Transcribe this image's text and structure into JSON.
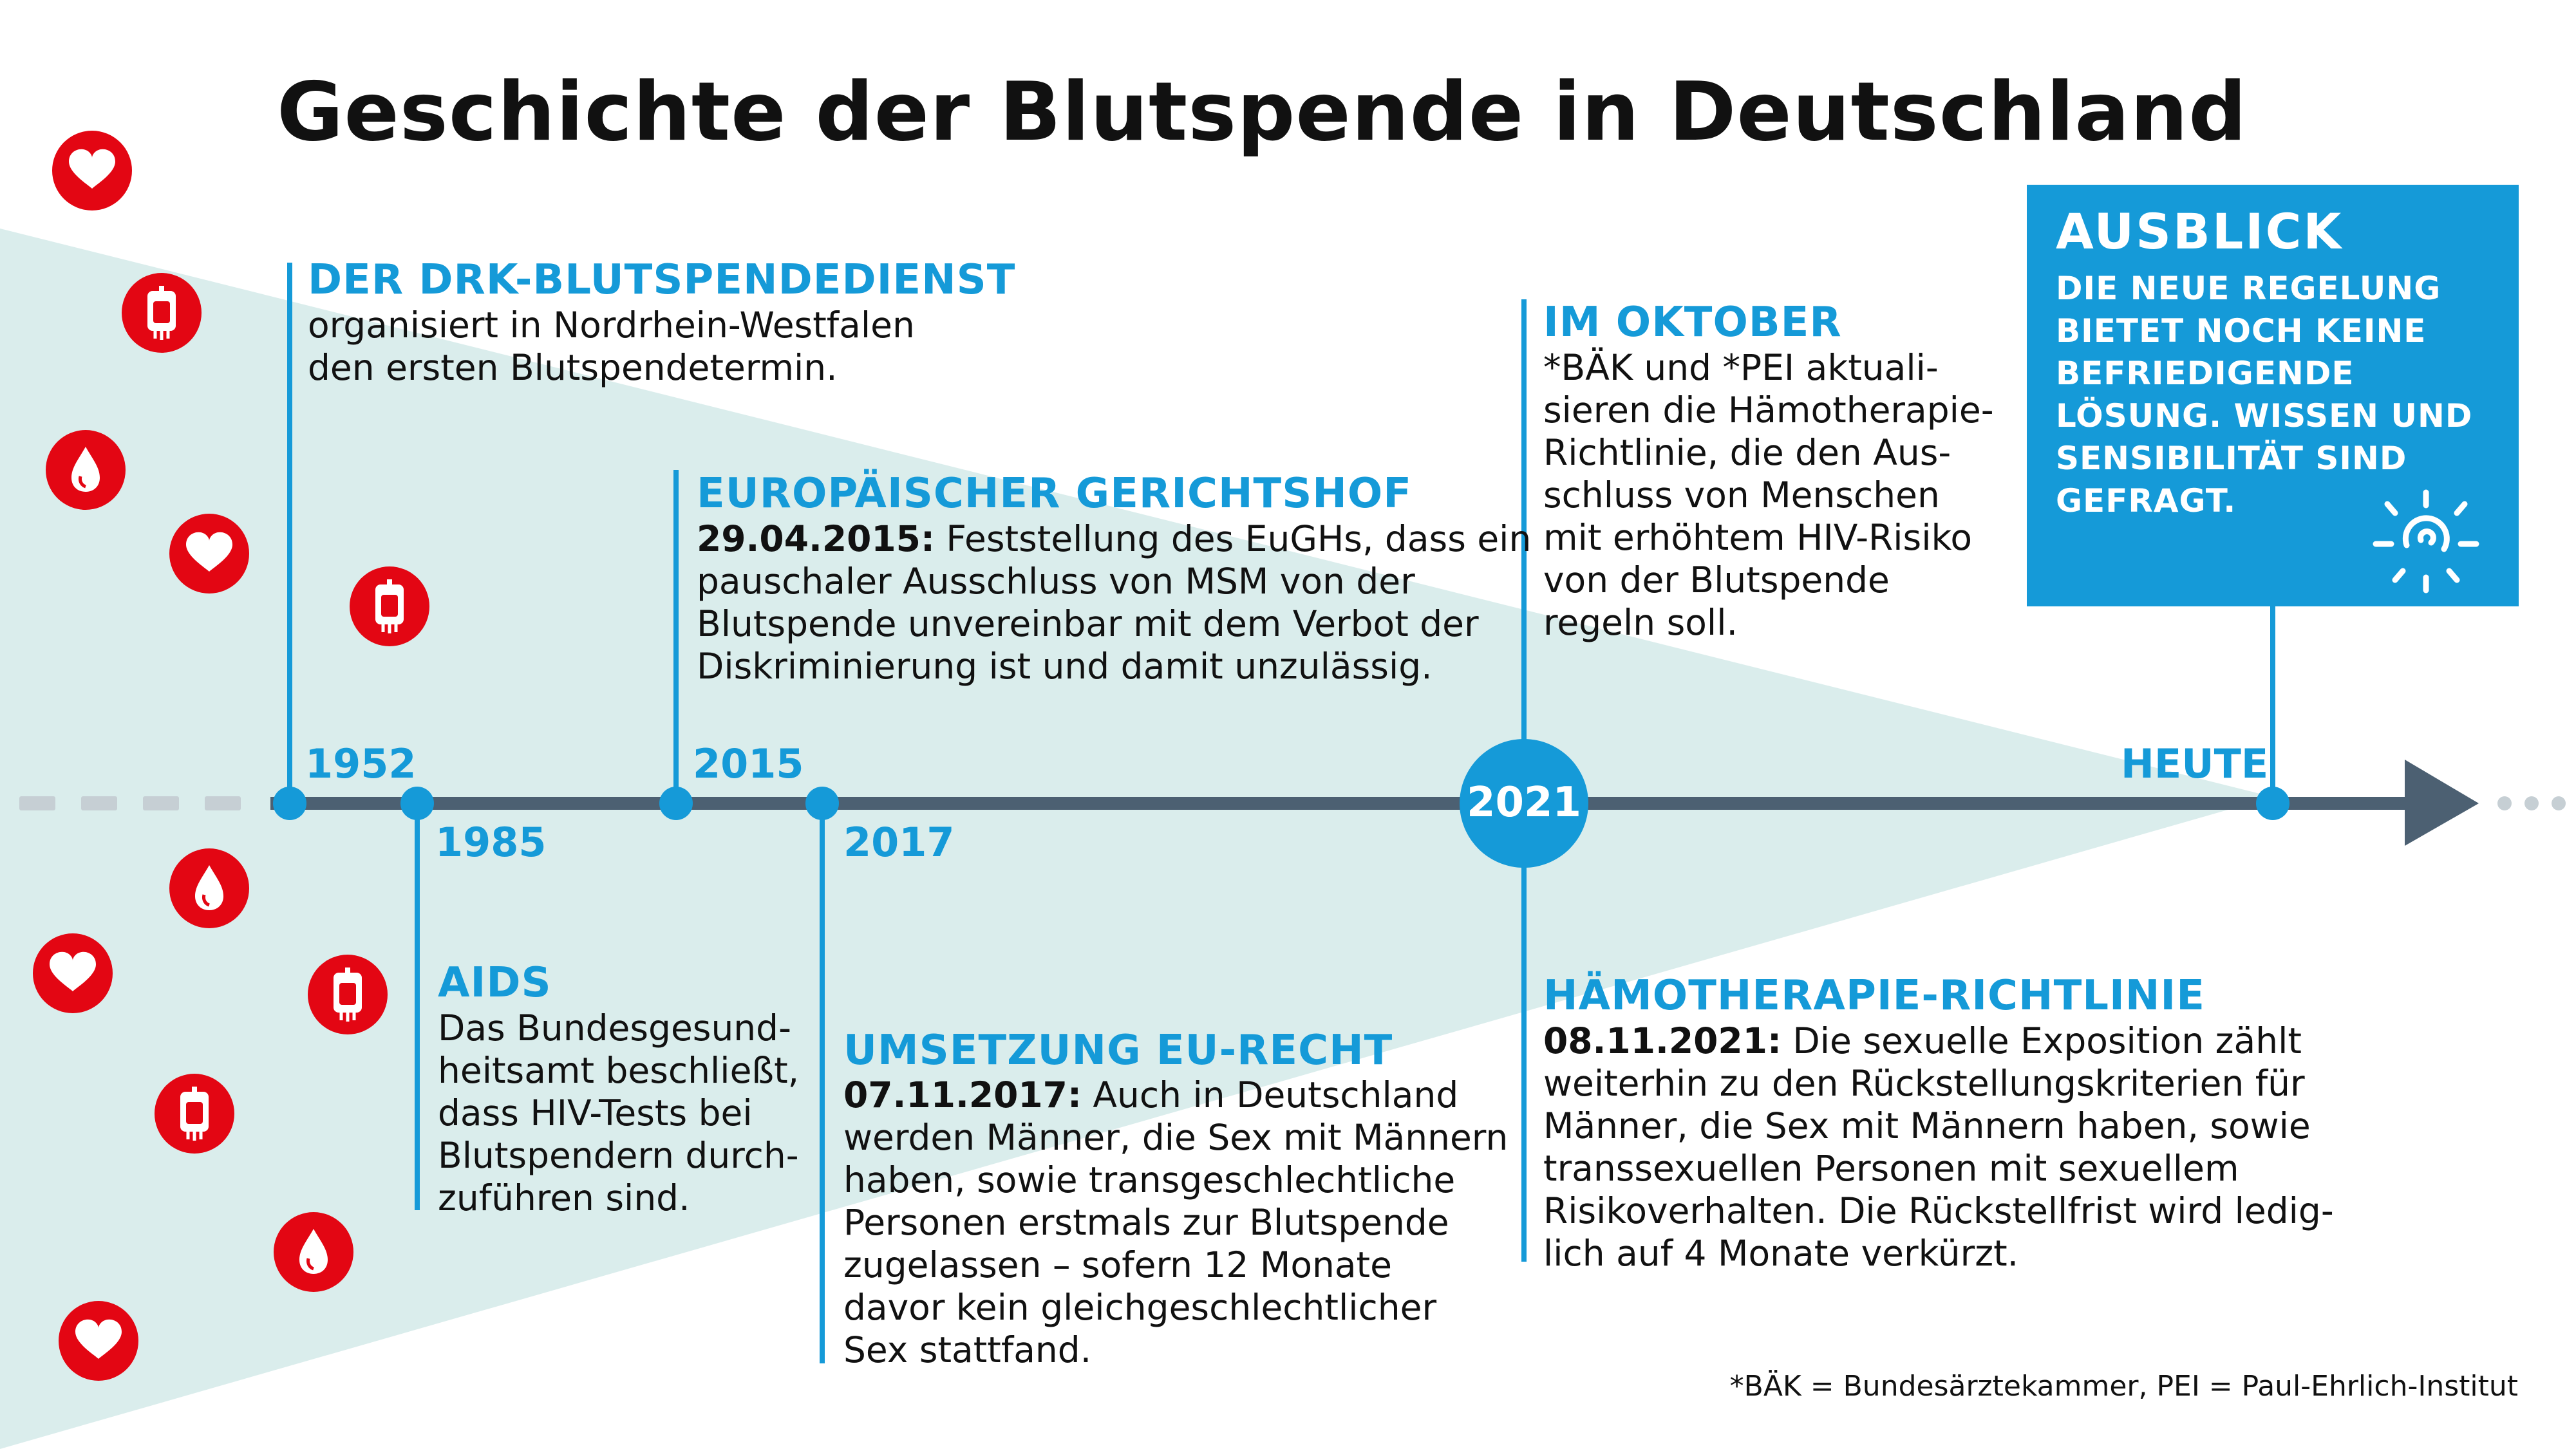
{
  "title": "Geschichte der Blutspende in Deutschland",
  "colors": {
    "accent": "#159ad8",
    "timeline": "#4c6072",
    "wedge": "#daedec",
    "icon_red": "#e30613",
    "dashes": "#c6cfd4"
  },
  "events": {
    "e1952": {
      "year": "1952",
      "heading": "Der DRK-Blutspendedienst",
      "text": "organisiert in Nordrhein-Westfalen\nden ersten Blutspendetermin."
    },
    "e1985": {
      "year": "1985",
      "heading": "AIDS",
      "text": "Das Bundesgesund-\nheitsamt beschließt,\ndass HIV-Tests bei\nBlutspendern durch-\nzuführen sind."
    },
    "e2015": {
      "year": "2015",
      "heading": "Europäischer Gerichtshof",
      "date": "29.04.2015:",
      "text": " Feststellung des EuGHs, dass ein\npauschaler Ausschluss von MSM von der\nBlutspende unvereinbar mit dem Verbot der\nDiskriminierung ist und damit unzulässig."
    },
    "e2017": {
      "year": "2017",
      "heading": "Umsetzung EU-Recht",
      "date": "07.11.2017:",
      "text": " Auch in Deutschland\nwerden Männer, die Sex mit Männern\nhaben, sowie transgeschlechtliche\nPersonen erstmals zur Blutspende\nzugelassen – sofern 12 Monate\ndavor kein gleichgeschlechtlicher\nSex stattfand."
    },
    "e2021": {
      "year": "2021",
      "top_heading": "Im Oktober",
      "top_text": "*BÄK und *PEI aktuali-\nsieren die Hämotherapie-\nRichtlinie, die den Aus-\nschluss von Menschen\nmit erhöhtem HIV-Risiko\nvon der Blutspende\nregeln soll.",
      "bottom_heading": "Hämotherapie-Richtlinie",
      "bottom_date": "08.11.2021:",
      "bottom_text": " Die sexuelle Exposition zählt\nweiterhin zu den Rückstellungskriterien für\nMänner, die Sex mit Männern haben, sowie\ntranssexuellen Personen mit sexuellem\nRisikoverhalten. Die Rückstellfrist wird ledig-\nlich auf 4 Monate verkürzt."
    },
    "heute": {
      "label": "HEUTE"
    }
  },
  "ausblick": {
    "heading": "AUSBLICK",
    "text": "Die neue Regelung bietet noch keine befriedigende Lösung. Wissen und Sensibilität sind gefragt."
  },
  "icons": [
    "heart-icon",
    "blood-bag-icon",
    "blood-drop-icon",
    "heart-icon",
    "blood-bag-icon",
    "blood-drop-icon",
    "heart-icon",
    "blood-bag-icon",
    "blood-bag-icon",
    "blood-drop-icon",
    "heart-icon"
  ],
  "footnote": "*BÄK = Bundesärztekammer, PEI = Paul-Ehrlich-Institut"
}
